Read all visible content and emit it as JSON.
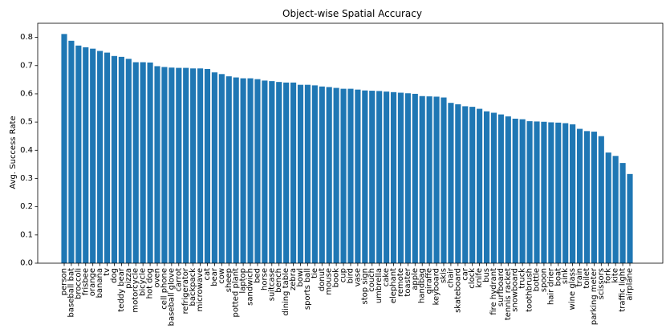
{
  "chart_data": {
    "type": "bar",
    "title": "Object-wise Spatial Accuracy",
    "xlabel": "",
    "ylabel": "Avg. Success Rate",
    "ylim": [
      0,
      0.85
    ],
    "yticks": [
      0.0,
      0.1,
      0.2,
      0.3,
      0.4,
      0.5,
      0.6,
      0.7,
      0.8
    ],
    "ytick_labels": [
      "0.0",
      "0.1",
      "0.2",
      "0.3",
      "0.4",
      "0.5",
      "0.6",
      "0.7",
      "0.8"
    ],
    "grid": false,
    "bar_color": "#1f77b4",
    "categories": [
      "person",
      "baseball bat",
      "broccoli",
      "frisbee",
      "orange",
      "banana",
      "tv",
      "dog",
      "teddy bear",
      "pizza",
      "motorcycle",
      "bicycle",
      "hot dog",
      "oven",
      "cell phone",
      "baseball glove",
      "carrot",
      "refrigerator",
      "backpack",
      "microwave",
      "cat",
      "bear",
      "cow",
      "sheep",
      "potted plant",
      "laptop",
      "sandwich",
      "bed",
      "horse",
      "suitcase",
      "bench",
      "dining table",
      "zebra",
      "bowl",
      "sports ball",
      "tie",
      "donut",
      "mouse",
      "book",
      "cup",
      "bird",
      "vase",
      "stop sign",
      "couch",
      "umbrella",
      "cake",
      "elephant",
      "remote",
      "toaster",
      "apple",
      "handbag",
      "giraffe",
      "keyboard",
      "skis",
      "chair",
      "skateboard",
      "car",
      "clock",
      "knife",
      "bus",
      "fire hydrant",
      "surfboard",
      "tennis racket",
      "snowboard",
      "truck",
      "toothbrush",
      "bottle",
      "spoon",
      "hair drier",
      "boat",
      "sink",
      "wine glass",
      "train",
      "toilet",
      "parking meter",
      "scissors",
      "fork",
      "kite",
      "traffic light",
      "airplane"
    ],
    "values": [
      0.812,
      0.788,
      0.771,
      0.765,
      0.76,
      0.752,
      0.746,
      0.734,
      0.731,
      0.724,
      0.712,
      0.712,
      0.711,
      0.698,
      0.695,
      0.693,
      0.692,
      0.692,
      0.69,
      0.69,
      0.688,
      0.676,
      0.67,
      0.662,
      0.658,
      0.655,
      0.655,
      0.652,
      0.647,
      0.645,
      0.642,
      0.64,
      0.64,
      0.632,
      0.632,
      0.63,
      0.626,
      0.624,
      0.621,
      0.618,
      0.618,
      0.615,
      0.612,
      0.611,
      0.61,
      0.608,
      0.606,
      0.604,
      0.602,
      0.6,
      0.592,
      0.591,
      0.59,
      0.587,
      0.568,
      0.563,
      0.556,
      0.554,
      0.547,
      0.538,
      0.533,
      0.527,
      0.52,
      0.512,
      0.51,
      0.503,
      0.502,
      0.501,
      0.499,
      0.498,
      0.496,
      0.492,
      0.476,
      0.468,
      0.466,
      0.45,
      0.392,
      0.38,
      0.355,
      0.316
    ]
  }
}
